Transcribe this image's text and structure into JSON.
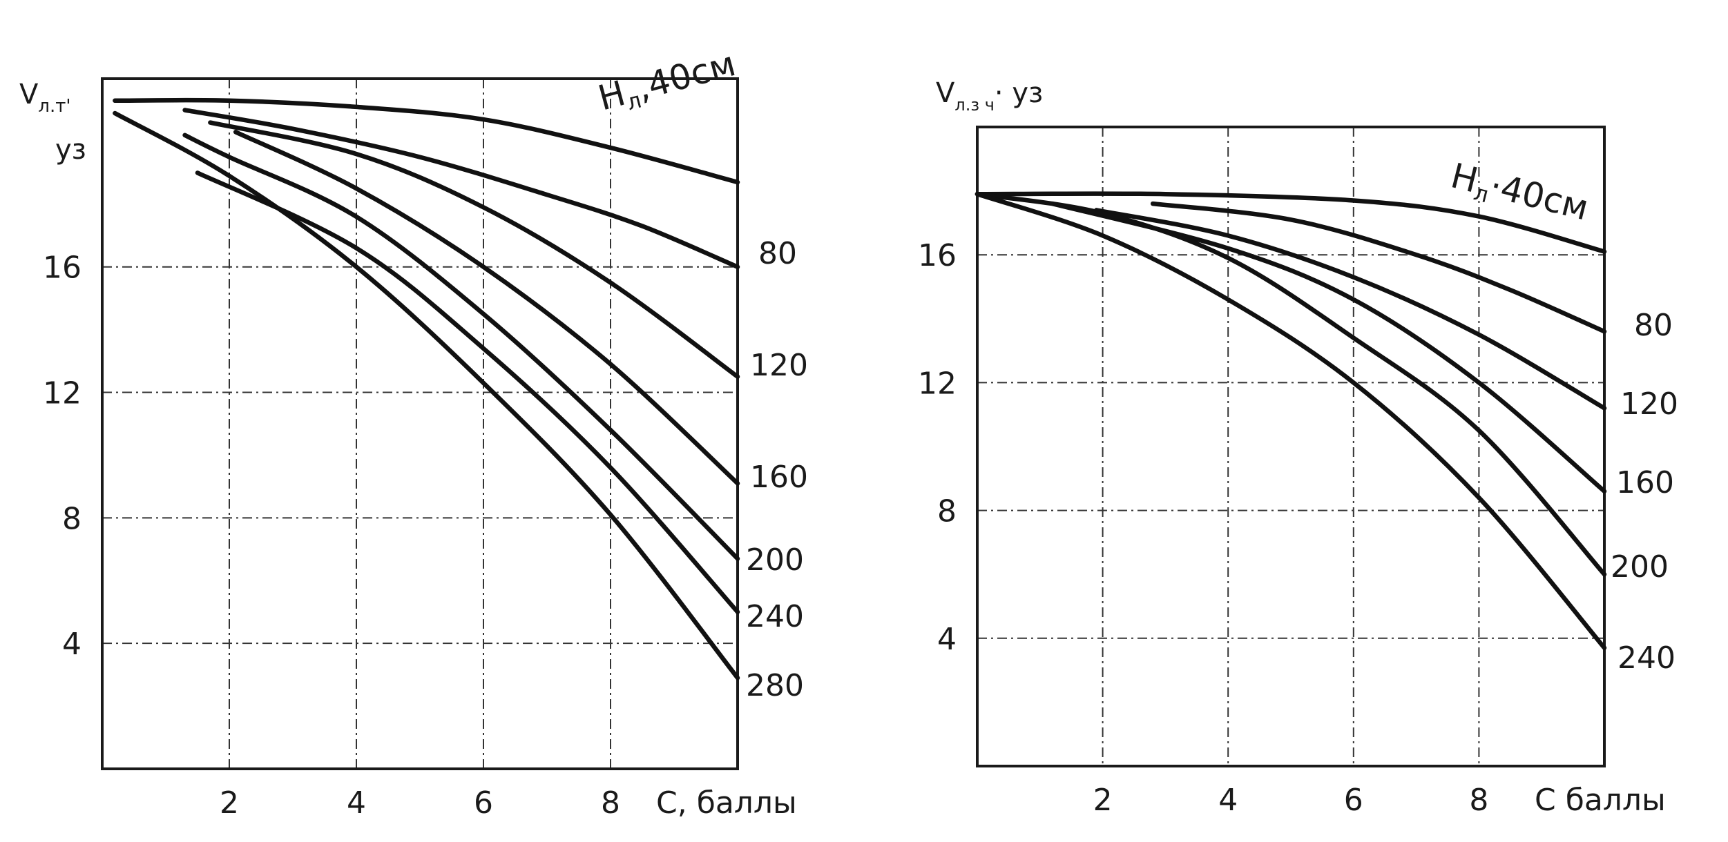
{
  "chart_data": [
    {
      "type": "line",
      "ylabel_main": "V",
      "ylabel_sub": "л.т'",
      "ylabel_unit": "уз",
      "xlabel": "C, баллы",
      "xlim": [
        0,
        10
      ],
      "ylim": [
        0,
        22
      ],
      "x_ticks": [
        2,
        4,
        6,
        8
      ],
      "y_ticks": [
        4,
        8,
        12,
        16
      ],
      "grid": true,
      "series": [
        {
          "name": "Hл,40см",
          "label_h": "H",
          "label_sub": "л",
          "label_rest": ",40см",
          "points": [
            [
              0.2,
              21.3
            ],
            [
              2,
              21.3
            ],
            [
              4,
              21.1
            ],
            [
              6,
              20.7
            ],
            [
              8,
              19.8
            ],
            [
              10,
              18.7
            ]
          ]
        },
        {
          "name": "80",
          "points": [
            [
              1.3,
              21.0
            ],
            [
              3,
              20.4
            ],
            [
              5,
              19.5
            ],
            [
              7,
              18.3
            ],
            [
              8.5,
              17.3
            ],
            [
              10,
              16.0
            ]
          ]
        },
        {
          "name": "120",
          "points": [
            [
              1.7,
              20.6
            ],
            [
              4,
              19.6
            ],
            [
              6,
              17.9
            ],
            [
              8,
              15.5
            ],
            [
              10,
              12.5
            ]
          ]
        },
        {
          "name": "160",
          "points": [
            [
              2.1,
              20.3
            ],
            [
              4,
              18.5
            ],
            [
              6,
              16.0
            ],
            [
              8,
              12.9
            ],
            [
              10,
              9.1
            ]
          ]
        },
        {
          "name": "200",
          "points": [
            [
              1.3,
              20.2
            ],
            [
              2,
              19.5
            ],
            [
              4,
              17.6
            ],
            [
              6,
              14.5
            ],
            [
              8,
              10.8
            ],
            [
              10,
              6.7
            ]
          ]
        },
        {
          "name": "240",
          "points": [
            [
              1.5,
              19.0
            ],
            [
              4,
              16.6
            ],
            [
              6,
              13.4
            ],
            [
              8,
              9.6
            ],
            [
              10,
              5.0
            ]
          ]
        },
        {
          "name": "280",
          "points": [
            [
              0.2,
              20.9
            ],
            [
              2,
              18.9
            ],
            [
              4,
              16.0
            ],
            [
              6,
              12.3
            ],
            [
              8,
              8.1
            ],
            [
              10,
              2.9
            ]
          ]
        }
      ]
    },
    {
      "type": "line",
      "ylabel_main": "V",
      "ylabel_sub": "л.з ч",
      "ylabel_unit": "· уз",
      "xlabel": "C баллы",
      "xlim": [
        0,
        10
      ],
      "ylim": [
        0,
        20
      ],
      "x_ticks": [
        2,
        4,
        6,
        8
      ],
      "y_ticks": [
        4,
        8,
        12,
        16
      ],
      "grid": true,
      "series": [
        {
          "name": "Hл·40см",
          "label_h": "H",
          "label_sub": "л",
          "label_rest": "·40см",
          "points": [
            [
              0,
              17.9
            ],
            [
              3,
              17.9
            ],
            [
              6,
              17.7
            ],
            [
              8,
              17.2
            ],
            [
              10,
              16.1
            ]
          ]
        },
        {
          "name": "80",
          "points": [
            [
              2.8,
              17.6
            ],
            [
              5,
              17.1
            ],
            [
              7,
              16.0
            ],
            [
              8.5,
              14.9
            ],
            [
              10,
              13.6
            ]
          ]
        },
        {
          "name": "120",
          "points": [
            [
              1.9,
              17.4
            ],
            [
              4,
              16.6
            ],
            [
              6,
              15.3
            ],
            [
              8,
              13.5
            ],
            [
              10,
              11.2
            ]
          ]
        },
        {
          "name": "160",
          "points": [
            [
              1.2,
              17.6
            ],
            [
              4,
              16.2
            ],
            [
              6,
              14.6
            ],
            [
              8,
              12.0
            ],
            [
              10,
              8.6
            ]
          ]
        },
        {
          "name": "200",
          "points": [
            [
              0,
              17.9
            ],
            [
              2,
              17.3
            ],
            [
              4,
              15.9
            ],
            [
              6,
              13.4
            ],
            [
              8,
              10.5
            ],
            [
              10,
              6.0
            ]
          ]
        },
        {
          "name": "240",
          "points": [
            [
              0,
              17.9
            ],
            [
              2,
              16.6
            ],
            [
              4,
              14.6
            ],
            [
              6,
              12.0
            ],
            [
              8,
              8.4
            ],
            [
              10,
              3.7
            ]
          ]
        }
      ]
    }
  ]
}
